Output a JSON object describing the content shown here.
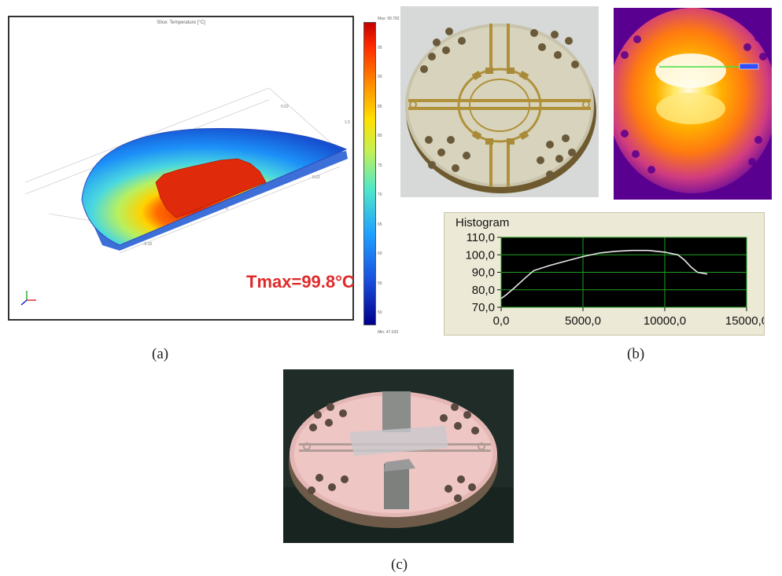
{
  "panel_a": {
    "plot_title": "Slice: Temperature [°C]",
    "tmax_label": "Tmax=99.8°C",
    "colorbar_max": "Max: 99.782",
    "colorbar_min": "Min: 47.033",
    "colorbar_ticks": [
      "95",
      "90",
      "85",
      "80",
      "75",
      "70",
      "65",
      "60",
      "55",
      "50"
    ],
    "caption": "(a)"
  },
  "panel_b": {
    "caption": "(b)",
    "histogram": {
      "title": "Histogram"
    }
  },
  "panel_c": {
    "caption": "(c)"
  },
  "chart_data": {
    "type": "line",
    "title": "Histogram",
    "xlabel": "",
    "ylabel": "",
    "xlim": [
      0,
      15000
    ],
    "ylim": [
      70,
      110
    ],
    "x_tick_labels": [
      "0,0",
      "5000,0",
      "10000,0",
      "15000,0"
    ],
    "y_tick_labels": [
      "110,0",
      "100,0",
      "90,0",
      "80,0",
      "70,0"
    ],
    "x_ticks": [
      0,
      5000,
      10000,
      15000
    ],
    "y_ticks": [
      110,
      100,
      90,
      80,
      70
    ],
    "grid": true,
    "series": [
      {
        "x": [
          0,
          300,
          800,
          1500,
          2000,
          3000,
          4000,
          5000,
          6000,
          7000,
          8000,
          9000,
          10000,
          10800,
          11200,
          11600,
          12000,
          12600
        ],
        "y": [
          75,
          77,
          81,
          87,
          91,
          94,
          96.5,
          99,
          101,
          102,
          102.5,
          102.5,
          101.5,
          100,
          97,
          93,
          90,
          89
        ],
        "color": "#e8e8e8"
      }
    ]
  }
}
